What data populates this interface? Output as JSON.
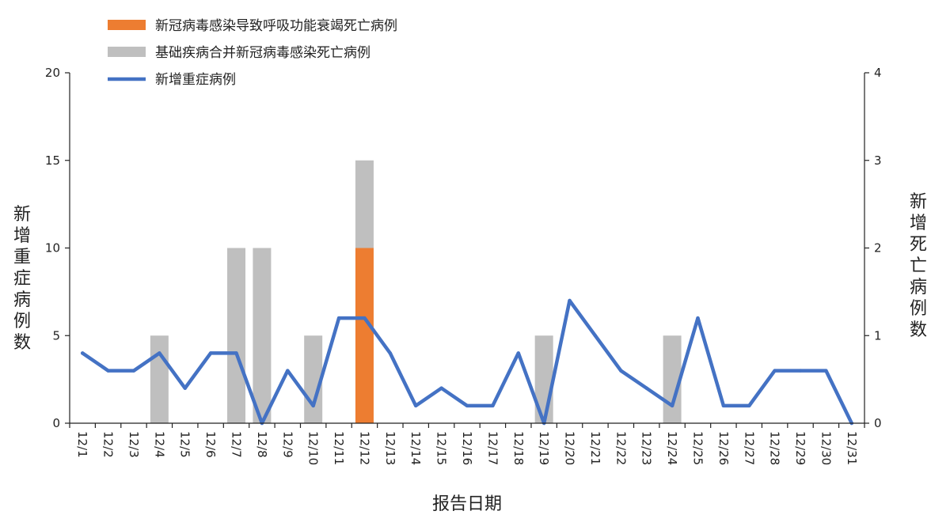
{
  "chart_data": {
    "type": "bar+line",
    "categories": [
      "12/1",
      "12/2",
      "12/3",
      "12/4",
      "12/5",
      "12/6",
      "12/7",
      "12/8",
      "12/9",
      "12/10",
      "12/11",
      "12/12",
      "12/13",
      "12/14",
      "12/15",
      "12/16",
      "12/17",
      "12/18",
      "12/19",
      "12/20",
      "12/21",
      "12/22",
      "12/23",
      "12/24",
      "12/25",
      "12/26",
      "12/27",
      "12/28",
      "12/29",
      "12/30",
      "12/31"
    ],
    "xlabel": "报告日期",
    "ylabel_left": "新增重症病例数",
    "ylabel_right": "新增死亡病例数",
    "ylim_left": [
      0,
      20
    ],
    "ylim_right": [
      0,
      4
    ],
    "yticks_left": [
      0,
      5,
      10,
      15,
      20
    ],
    "yticks_right": [
      0,
      1,
      2,
      3,
      4
    ],
    "grid": false,
    "legend_position": "top-left",
    "bar_series": [
      {
        "name": "新冠病毒感染导致呼吸功能衰竭死亡病例",
        "color": "#ED7D31",
        "axis": "right",
        "values": [
          0,
          0,
          0,
          0,
          0,
          0,
          0,
          0,
          0,
          0,
          0,
          2,
          0,
          0,
          0,
          0,
          0,
          0,
          0,
          0,
          0,
          0,
          0,
          0,
          0,
          0,
          0,
          0,
          0,
          0,
          0
        ]
      },
      {
        "name": "基础疾病合并新冠病毒感染死亡病例",
        "color": "#BFBFBF",
        "axis": "right",
        "values": [
          0,
          0,
          0,
          1,
          0,
          0,
          2,
          2,
          0,
          1,
          0,
          1,
          0,
          0,
          0,
          0,
          0,
          0,
          1,
          0,
          0,
          0,
          0,
          1,
          0,
          0,
          0,
          0,
          0,
          0,
          0
        ]
      }
    ],
    "line_series": [
      {
        "name": "新增重症病例",
        "color": "#4472C4",
        "axis": "left",
        "values": [
          4,
          3,
          3,
          4,
          2,
          4,
          4,
          0,
          3,
          1,
          6,
          6,
          4,
          1,
          2,
          1,
          1,
          4,
          0,
          7,
          5,
          3,
          2,
          1,
          6,
          1,
          1,
          3,
          3,
          3,
          0
        ]
      }
    ]
  }
}
